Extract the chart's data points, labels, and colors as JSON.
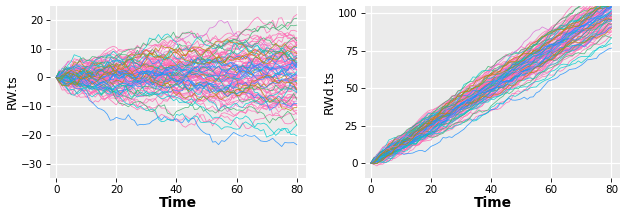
{
  "n_steps": 81,
  "n_series": 100,
  "seed": 42,
  "drift_per_step": 1.25,
  "bg_color": "#EBEBEB",
  "grid_color": "#FFFFFF",
  "lw": 0.55,
  "alpha": 0.85,
  "left_ylabel": "RW.ts",
  "right_ylabel": "RWd.ts",
  "xlabel": "Time",
  "left_ylim": [
    -35,
    25
  ],
  "right_ylim": [
    -10,
    105
  ],
  "left_yticks": [
    -30,
    -20,
    -10,
    0,
    10,
    20
  ],
  "right_yticks": [
    0,
    25,
    50,
    75,
    100
  ],
  "xticks": [
    0,
    20,
    40,
    60,
    80
  ],
  "label_fontsize": 9,
  "xlabel_fontsize": 10,
  "tick_fontsize": 7.5,
  "color_fractions": {
    "#FF69B4": 0.6,
    "#1E90FF": 0.12,
    "#00CED1": 0.08,
    "#DA70D6": 0.06,
    "#B8860B": 0.07,
    "#3CB371": 0.07
  }
}
